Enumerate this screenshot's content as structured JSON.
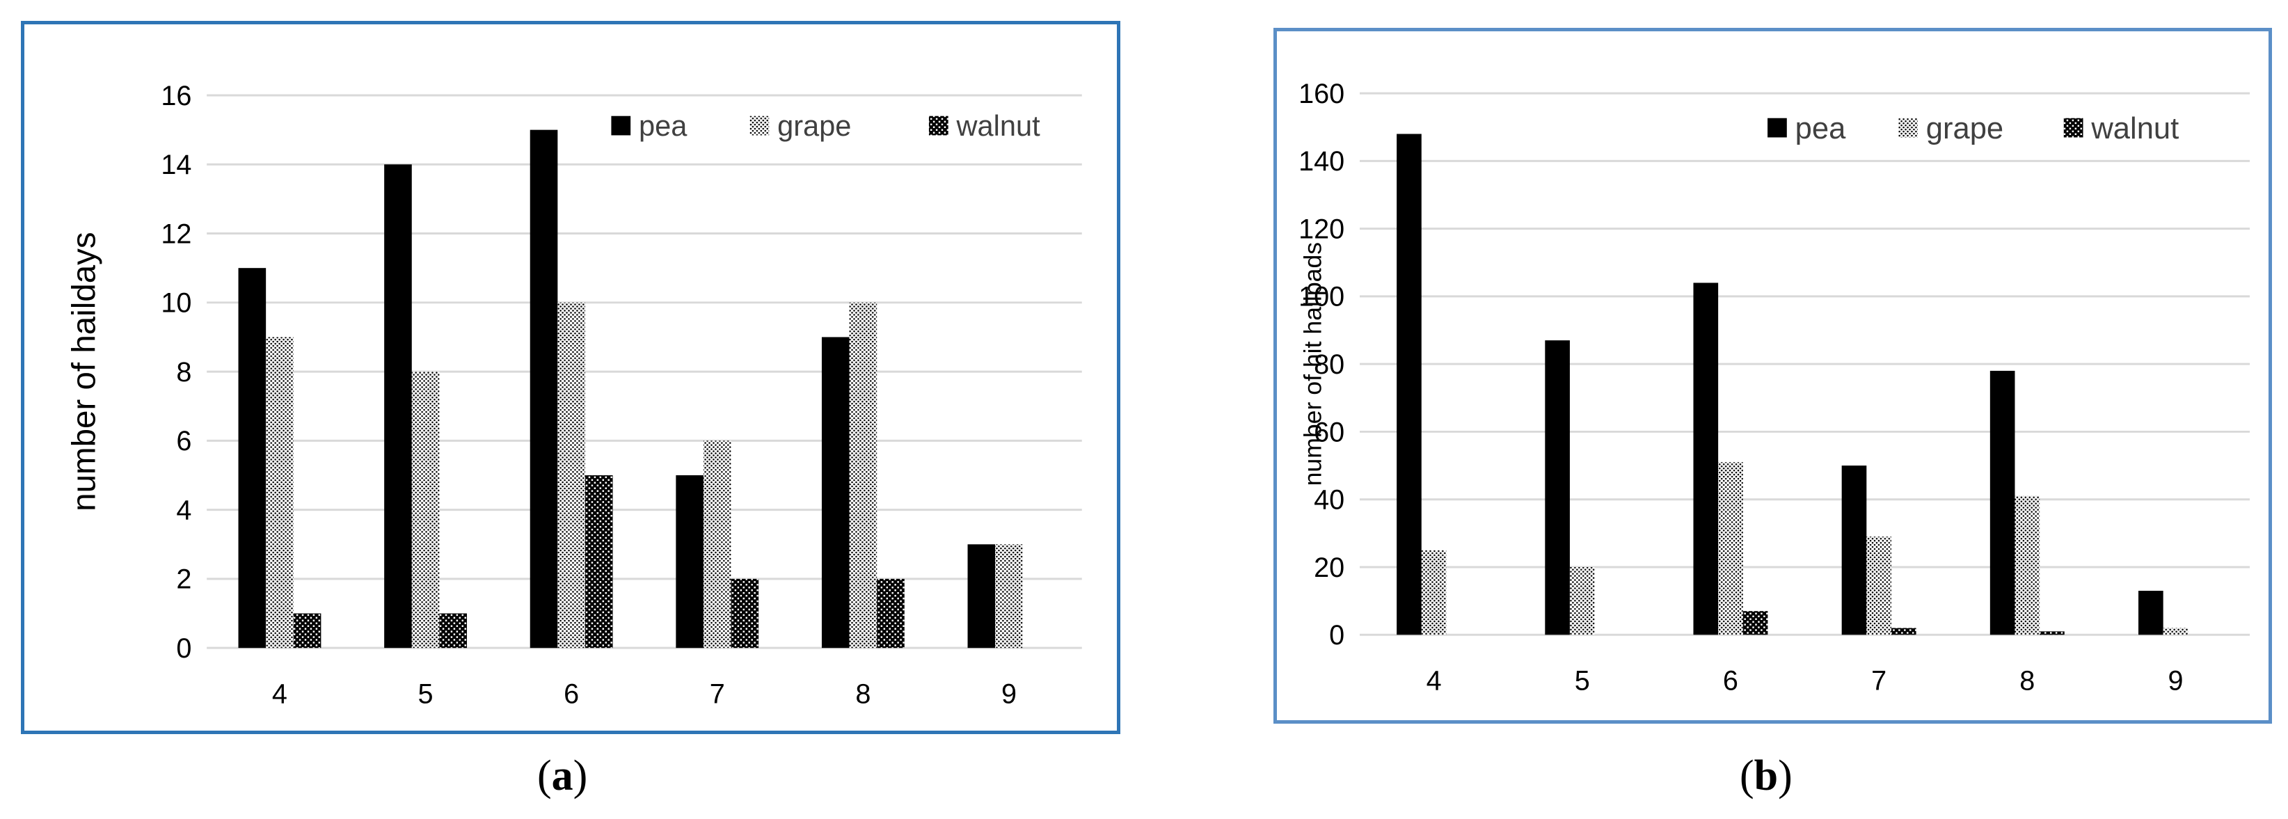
{
  "chart_data": [
    {
      "type": "bar",
      "panel": "(a)",
      "panel_letter": "a",
      "ylabel": "number of haildays",
      "xlabel": "",
      "ylim": [
        0,
        16
      ],
      "yticks": [
        0,
        2,
        4,
        6,
        8,
        10,
        12,
        14,
        16
      ],
      "categories": [
        "4",
        "5",
        "6",
        "7",
        "8",
        "9"
      ],
      "series": [
        {
          "name": "pea",
          "values": [
            11,
            14,
            15,
            5,
            9,
            3
          ]
        },
        {
          "name": "grape",
          "values": [
            9,
            8,
            10,
            6,
            10,
            3
          ]
        },
        {
          "name": "walnut",
          "values": [
            1,
            1,
            5,
            2,
            2,
            0
          ]
        }
      ],
      "grid": true,
      "legend_position": "top-right"
    },
    {
      "type": "bar",
      "panel": "(b)",
      "panel_letter": "b",
      "ylabel": "number of hit hailpads",
      "xlabel": "",
      "ylim": [
        0,
        160
      ],
      "yticks": [
        0,
        20,
        40,
        60,
        80,
        100,
        120,
        140,
        160
      ],
      "categories": [
        "4",
        "5",
        "6",
        "7",
        "8",
        "9"
      ],
      "series": [
        {
          "name": "pea",
          "values": [
            148,
            87,
            104,
            50,
            78,
            13
          ]
        },
        {
          "name": "grape",
          "values": [
            25,
            20,
            51,
            29,
            41,
            2
          ]
        },
        {
          "name": "walnut",
          "values": [
            0,
            0,
            7,
            2,
            1,
            0
          ]
        }
      ],
      "grid": true,
      "legend_position": "top-right"
    }
  ],
  "colors": {
    "frame_a": "#2e75b6",
    "frame_b": "#5b8fc7",
    "grid": "#d9d9d9",
    "bars": "#000000"
  }
}
